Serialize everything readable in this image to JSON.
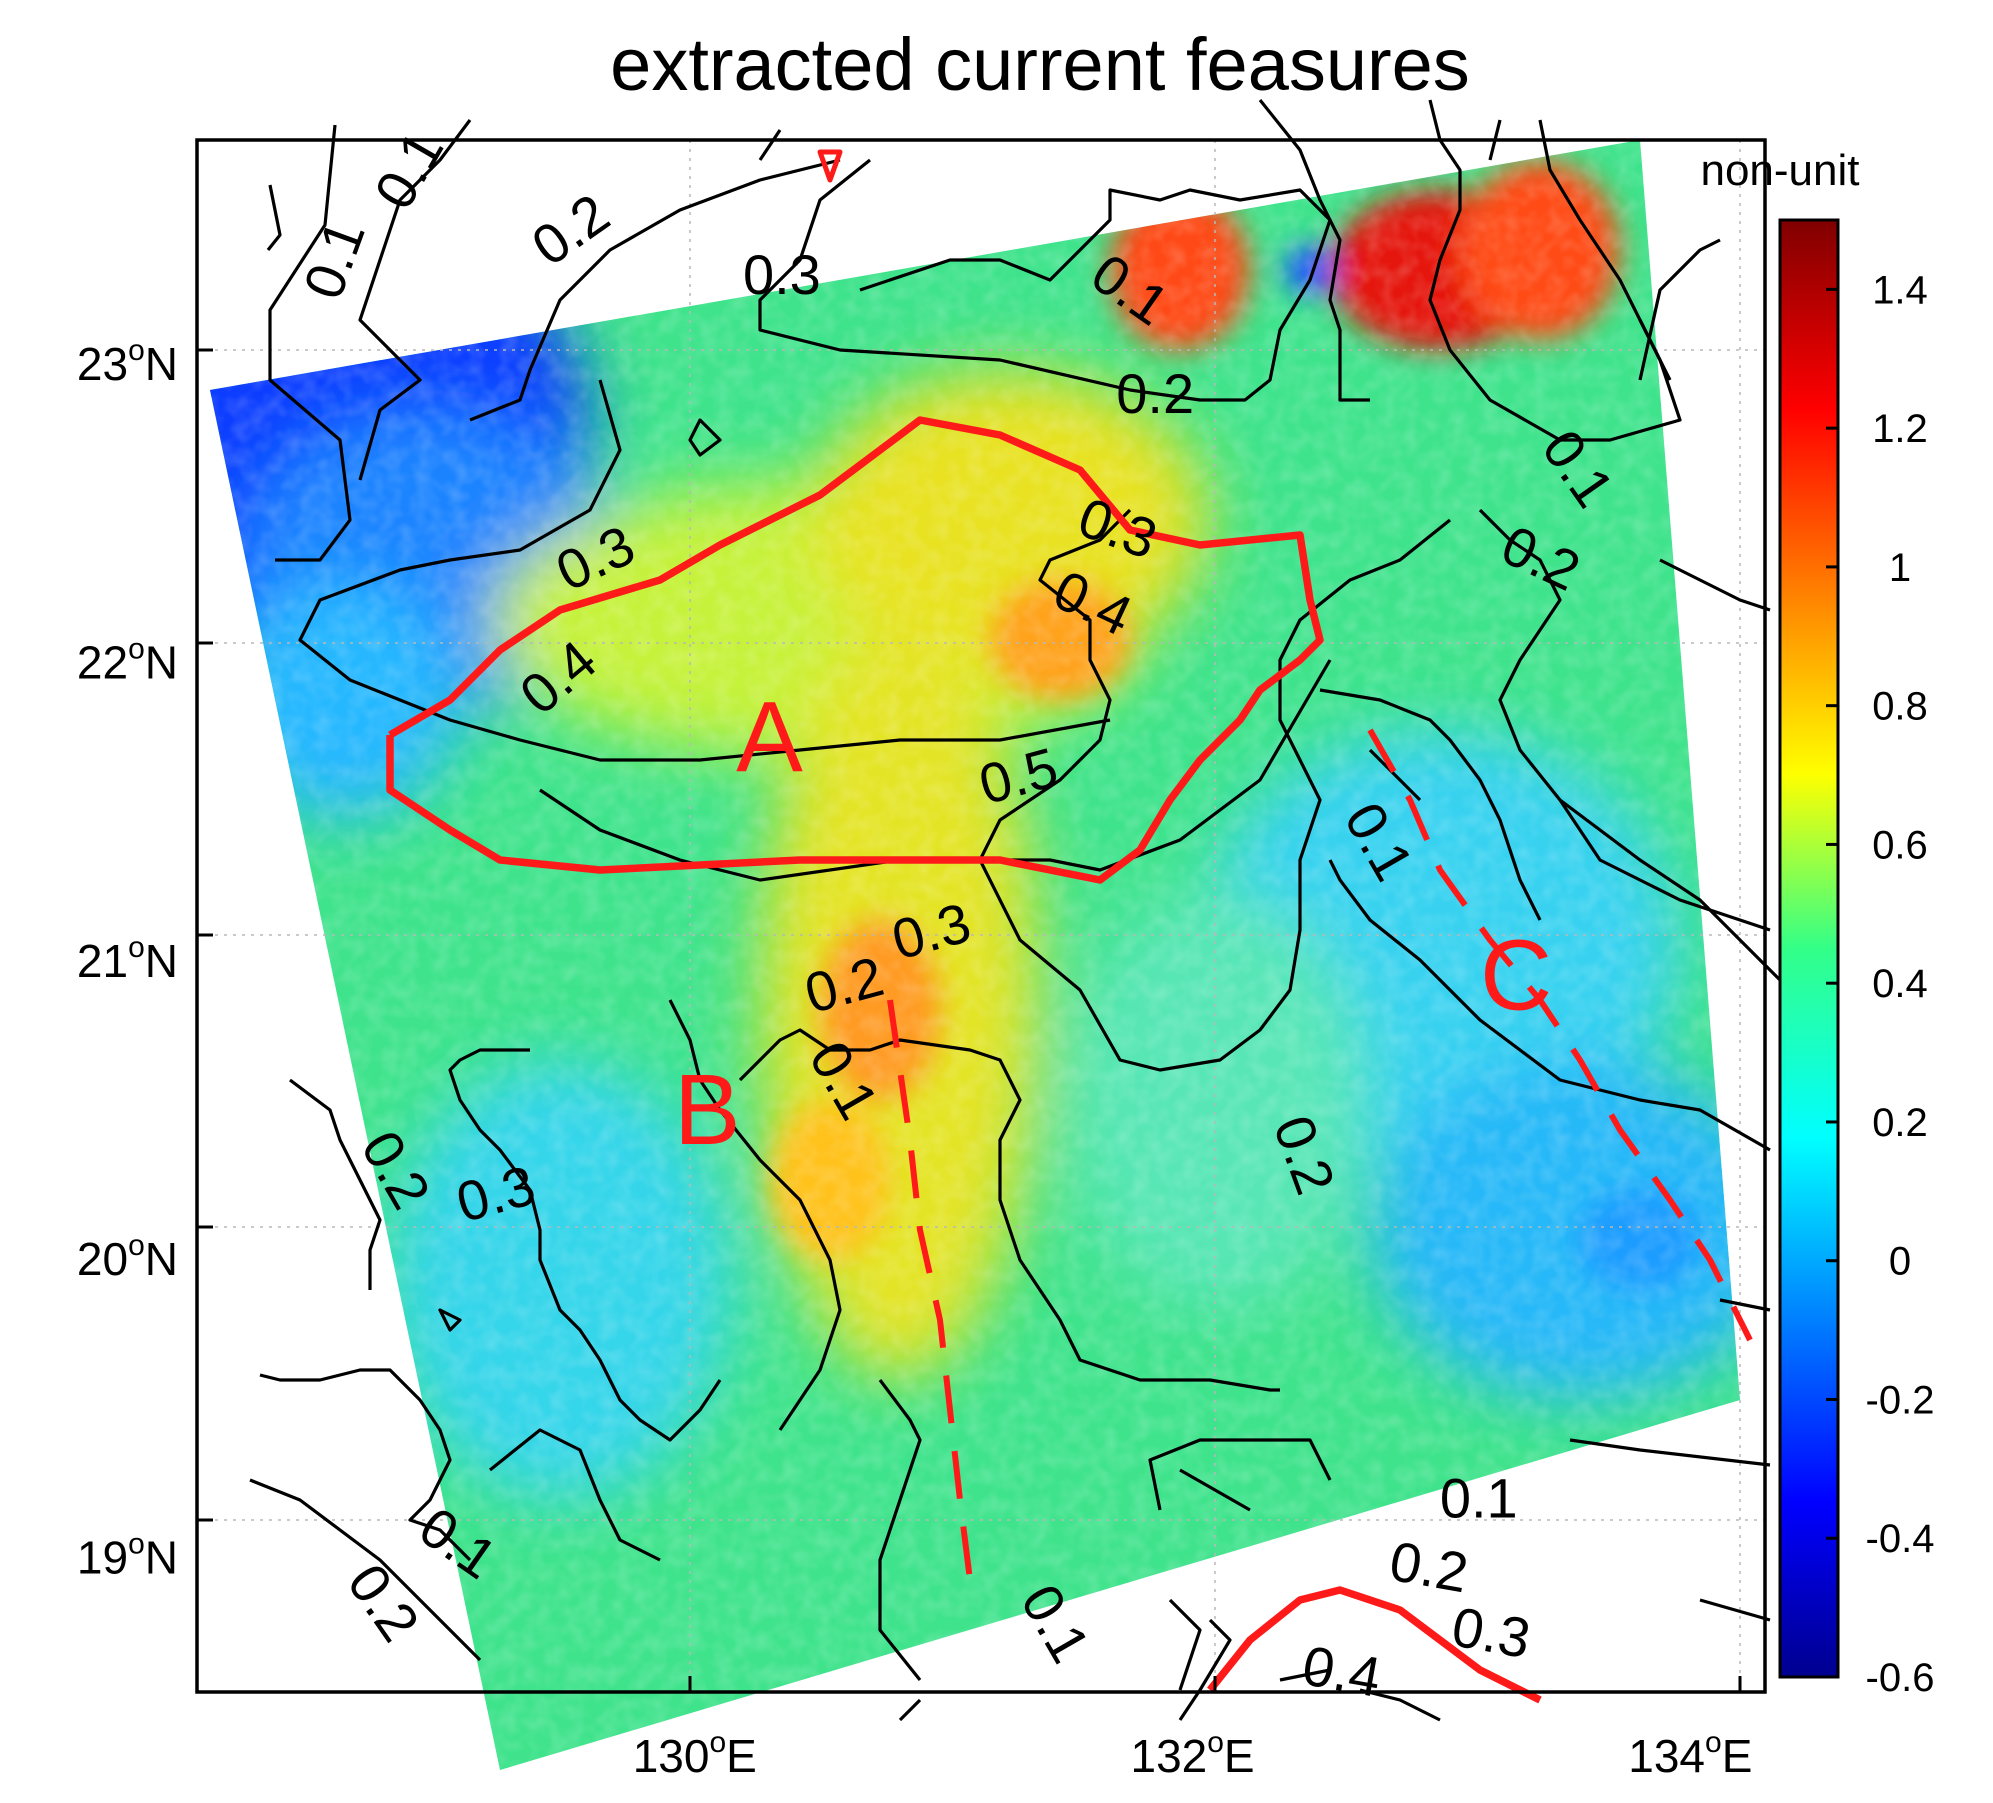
{
  "chart_data": {
    "type": "heatmap",
    "title": "extracted current feasures",
    "xlabel": "",
    "ylabel": "",
    "x_ticks": [
      {
        "value": 130,
        "label": "130",
        "unit": "E"
      },
      {
        "value": 132,
        "label": "132",
        "unit": "E"
      },
      {
        "value": 134,
        "label": "134",
        "unit": "E"
      }
    ],
    "y_ticks": [
      {
        "value": 23,
        "label": "23",
        "unit": "N"
      },
      {
        "value": 22,
        "label": "22",
        "unit": "N"
      },
      {
        "value": 21,
        "label": "21",
        "unit": "N"
      },
      {
        "value": 20,
        "label": "20",
        "unit": "N"
      },
      {
        "value": 19,
        "label": "19",
        "unit": "N"
      }
    ],
    "degree_symbol": "o",
    "xlim": [
      128.0,
      134.3
    ],
    "ylim": [
      18.55,
      23.75
    ],
    "grid": true,
    "colorbar": {
      "label": "non-unit",
      "range": [
        -0.6,
        1.5
      ],
      "ticks": [
        "1.4",
        "1.2",
        "1",
        "0.8",
        "0.6",
        "0.4",
        "0.2",
        "0",
        "-0.2",
        "-0.4",
        "-0.6"
      ],
      "colormap": "jet"
    },
    "contour_labels": [
      {
        "text": "0.1",
        "lon": 128.55,
        "lat": 23.35,
        "angle": -70
      },
      {
        "text": "0.1",
        "lon": 128.85,
        "lat": 23.65,
        "angle": -60
      },
      {
        "text": "0.2",
        "lon": 129.5,
        "lat": 23.45,
        "angle": -35
      },
      {
        "text": "0.3",
        "lon": 130.35,
        "lat": 23.3,
        "angle": 0
      },
      {
        "text": "0.1",
        "lon": 131.75,
        "lat": 23.25,
        "angle": 35
      },
      {
        "text": "0.2",
        "lon": 131.85,
        "lat": 22.9,
        "angle": 0
      },
      {
        "text": "0.1",
        "lon": 133.55,
        "lat": 22.65,
        "angle": 55
      },
      {
        "text": "0.2",
        "lon": 133.4,
        "lat": 22.35,
        "angle": 25
      },
      {
        "text": "0.3",
        "lon": 131.7,
        "lat": 22.45,
        "angle": 20
      },
      {
        "text": "0.3",
        "lon": 129.6,
        "lat": 22.35,
        "angle": -25
      },
      {
        "text": "0.4",
        "lon": 131.6,
        "lat": 22.2,
        "angle": 25
      },
      {
        "text": "0.4",
        "lon": 129.45,
        "lat": 21.95,
        "angle": -40
      },
      {
        "text": "0.5",
        "lon": 131.3,
        "lat": 21.62,
        "angle": -15
      },
      {
        "text": "0.3",
        "lon": 130.95,
        "lat": 21.1,
        "angle": -15
      },
      {
        "text": "0.2",
        "lon": 130.6,
        "lat": 20.92,
        "angle": -15
      },
      {
        "text": "0.1",
        "lon": 130.6,
        "lat": 20.6,
        "angle": 60
      },
      {
        "text": "0.2",
        "lon": 128.8,
        "lat": 20.3,
        "angle": 60
      },
      {
        "text": "0.3",
        "lon": 129.2,
        "lat": 20.22,
        "angle": -15
      },
      {
        "text": "0.1",
        "lon": 132.75,
        "lat": 21.4,
        "angle": 60
      },
      {
        "text": "0.2",
        "lon": 132.45,
        "lat": 20.35,
        "angle": 70
      },
      {
        "text": "0.1",
        "lon": 129.05,
        "lat": 19.05,
        "angle": 35
      },
      {
        "text": "0.2",
        "lon": 128.75,
        "lat": 18.85,
        "angle": 55
      },
      {
        "text": "0.1",
        "lon": 131.45,
        "lat": 18.78,
        "angle": 60
      },
      {
        "text": "0.1",
        "lon": 133.15,
        "lat": 19.2,
        "angle": 0
      },
      {
        "text": "0.2",
        "lon": 132.95,
        "lat": 18.97,
        "angle": 10
      },
      {
        "text": "0.3",
        "lon": 133.2,
        "lat": 18.75,
        "angle": 10
      },
      {
        "text": "0.4",
        "lon": 132.6,
        "lat": 18.62,
        "angle": 10
      }
    ],
    "features": [
      {
        "label": "A",
        "lon": 130.3,
        "lat": 21.75
      },
      {
        "label": "B",
        "lon": 130.05,
        "lat": 20.5
      },
      {
        "label": "C",
        "lon": 133.3,
        "lat": 20.95
      }
    ]
  }
}
